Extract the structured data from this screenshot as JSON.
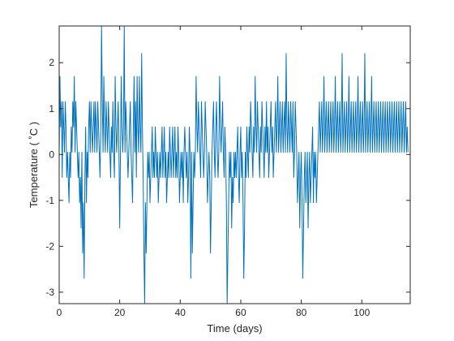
{
  "chart_data": {
    "type": "line",
    "title": "",
    "xlabel": "Time (days)",
    "ylabel": "Temperature  ( ˚C )",
    "xlim": [
      0,
      116
    ],
    "ylim": [
      -3.25,
      2.8
    ],
    "xticks": [
      0,
      20,
      40,
      60,
      80,
      100
    ],
    "yticks": [
      -3,
      -2,
      -1,
      0,
      1,
      2
    ],
    "grid": false,
    "line_color": "#0072BD",
    "axis_color": "#262626",
    "series": [
      {
        "step_days": 0.25,
        "values": [
          0.05,
          1.7,
          0.6,
          1.15,
          -0.5,
          1.15,
          0.6,
          0.05,
          1.15,
          0.6,
          -0.5,
          0.05,
          -0.5,
          -1.05,
          0.05,
          -0.5,
          0.6,
          0.05,
          1.15,
          0.6,
          1.7,
          0.05,
          1.15,
          0.6,
          0.05,
          -0.5,
          0.05,
          -1.05,
          -0.5,
          -1.6,
          0.05,
          -2.15,
          -1.05,
          -2.7,
          -0.5,
          0.6,
          -1.05,
          0.05,
          -0.5,
          0.6,
          1.15,
          0.05,
          1.15,
          0.6,
          0.05,
          0.6,
          1.15,
          0.05,
          1.15,
          0.6,
          0.05,
          1.15,
          0.6,
          0.05,
          -0.5,
          0.6,
          2.8,
          1.15,
          0.05,
          1.7,
          0.6,
          0.05,
          1.15,
          0.6,
          0.05,
          1.15,
          0.6,
          0.05,
          -0.5,
          0.6,
          0.05,
          1.15,
          0.05,
          -0.5,
          1.7,
          0.6,
          0.05,
          0.6,
          1.15,
          0.05,
          -1.6,
          0.05,
          1.7,
          0.6,
          0.05,
          0.6,
          2.8,
          0.05,
          1.15,
          0.6,
          0.05,
          -0.5,
          0.05,
          0.6,
          1.15,
          0.05,
          -0.5,
          -1.05,
          0.6,
          1.7,
          0.05,
          1.15,
          -0.5,
          1.7,
          0.6,
          0.05,
          1.7,
          0.6,
          0.05,
          2.2,
          0.6,
          -0.5,
          -2.15,
          -3.25,
          -1.05,
          -2.15,
          -1.05,
          0.05,
          -0.5,
          0.05,
          -1.05,
          -0.5,
          0.05,
          0.6,
          -0.5,
          0.05,
          -0.5,
          0.6,
          0.05,
          -0.5,
          0.05,
          -1.05,
          -0.5,
          0.05,
          -0.5,
          0.05,
          0.6,
          -0.5,
          0.05,
          0.6,
          -0.5,
          0.05,
          -1.05,
          -0.5,
          0.05,
          -0.5,
          0.6,
          0.05,
          -0.5,
          0.05,
          0.6,
          -0.5,
          0.05,
          0.6,
          -0.5,
          0.05,
          -0.5,
          0.6,
          0.05,
          -1.05,
          -0.5,
          0.05,
          -0.5,
          0.05,
          -1.05,
          0.05,
          0.6,
          0.05,
          -0.5,
          0.05,
          -1.05,
          -0.5,
          0.6,
          0.05,
          -2.7,
          0.05,
          -2.15,
          -1.05,
          0.05,
          -0.5,
          0.05,
          1.7,
          0.6,
          0.05,
          1.15,
          0.6,
          0.05,
          -0.5,
          1.15,
          0.6,
          0.05,
          -0.5,
          0.05,
          1.15,
          0.6,
          0.05,
          -1.05,
          -0.5,
          0.05,
          -0.5,
          -2.15,
          -1.05,
          0.05,
          0.6,
          1.15,
          0.05,
          -0.5,
          0.6,
          1.15,
          0.05,
          -0.5,
          0.05,
          1.7,
          0.6,
          0.05,
          0.6,
          1.15,
          0.05,
          -0.5,
          0.6,
          0.05,
          -1.05,
          -3.25,
          -2.15,
          -1.05,
          0.05,
          -0.5,
          0.05,
          -1.6,
          -0.5,
          -1.05,
          0.05,
          -0.5,
          0.05,
          -0.5,
          0.05,
          0.6,
          -0.5,
          -1.05,
          0.05,
          0.6,
          -0.5,
          0.05,
          -1.05,
          -2.7,
          -1.6,
          0.05,
          -0.5,
          0.6,
          0.05,
          -0.5,
          0.6,
          0.05,
          1.15,
          0.6,
          0.05,
          -0.5,
          0.6,
          0.05,
          1.7,
          0.6,
          0.05,
          1.15,
          0.6,
          0.05,
          -0.5,
          0.6,
          0.05,
          1.15,
          0.6,
          0.05,
          -0.5,
          0.6,
          0.05,
          1.15,
          0.05,
          0.6,
          -0.5,
          0.05,
          0.6,
          1.15,
          0.05,
          0.6,
          -0.5,
          0.05,
          0.6,
          1.15,
          0.05,
          0.6,
          1.7,
          0.05,
          0.6,
          1.15,
          0.05,
          0.6,
          1.15,
          0.05,
          0.6,
          1.15,
          0.05,
          2.2,
          0.6,
          0.05,
          1.15,
          0.6,
          0.05,
          1.15,
          0.6,
          0.05,
          1.15,
          -0.5,
          0.05,
          1.15,
          0.6,
          0.05,
          -1.05,
          -0.5,
          0.05,
          -1.6,
          -0.5,
          0.05,
          -1.05,
          -2.7,
          -1.6,
          -0.5,
          0.05,
          -1.05,
          -0.5,
          0.05,
          -1.6,
          -0.5,
          0.05,
          -1.05,
          -0.5,
          0.05,
          0.6,
          -1.05,
          0.05,
          -0.5,
          0.05,
          -1.05,
          -0.5,
          0.05,
          0.6,
          1.15,
          0.05,
          0.6,
          1.15,
          0.05,
          0.6,
          1.7,
          0.05,
          0.6,
          1.15,
          0.05,
          0.6,
          1.15,
          0.05,
          0.6,
          1.15,
          0.05,
          0.6,
          1.15,
          0.05,
          0.6,
          1.7,
          0.05,
          0.6,
          1.15,
          0.05,
          0.6,
          1.15,
          0.05,
          0.6,
          2.2,
          0.05,
          0.6,
          1.15,
          0.05,
          0.6,
          1.15,
          0.05,
          0.6,
          1.7,
          0.05,
          0.6,
          1.15,
          0.05,
          0.6,
          1.15,
          0.05,
          0.6,
          1.15,
          0.05,
          0.6,
          1.7,
          0.05,
          0.6,
          1.15,
          0.05,
          0.6,
          1.15,
          0.05,
          0.6,
          2.2,
          0.05,
          0.6,
          1.15,
          0.05,
          0.6,
          1.15,
          0.05,
          0.6,
          1.7,
          0.05,
          0.6,
          1.15,
          0.05,
          0.6,
          1.15,
          0.05,
          0.6,
          1.15,
          0.05,
          0.6,
          1.15,
          0.05,
          0.6,
          1.15,
          0.05,
          0.6,
          1.15,
          0.05,
          0.6,
          1.15,
          0.05,
          0.6,
          1.15,
          0.05,
          0.6,
          1.15,
          0.05,
          0.6,
          1.15,
          0.05,
          0.6,
          1.15,
          0.05,
          0.6,
          1.15,
          0.05,
          0.6,
          1.15,
          0.05,
          0.6,
          1.15,
          0.05,
          0.6,
          1.15,
          0.05,
          0.6,
          0.05
        ]
      }
    ]
  }
}
